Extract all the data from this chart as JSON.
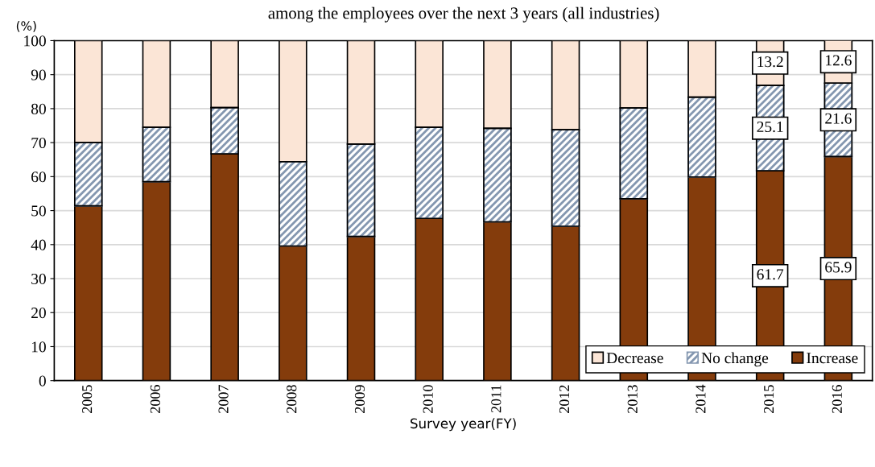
{
  "chart_data": {
    "type": "bar",
    "stacked": true,
    "title": "among the employees over the next 3 years (all industries)",
    "xlabel": "Survey year(FY)",
    "ylabel": "(%)",
    "categories": [
      "2005",
      "2006",
      "2007",
      "2008",
      "2009",
      "2010",
      "2011",
      "2012",
      "2013",
      "2014",
      "2015",
      "2016"
    ],
    "series": [
      {
        "name": "Increase",
        "color": "#843c0c",
        "values": [
          51.4,
          58.5,
          66.7,
          39.6,
          42.4,
          47.7,
          46.7,
          45.4,
          53.5,
          59.9,
          61.7,
          65.9
        ],
        "value_labels": [
          null,
          null,
          null,
          null,
          null,
          null,
          null,
          null,
          null,
          null,
          "61.7",
          "65.9"
        ]
      },
      {
        "name": "No change",
        "color": "#8497b0",
        "values": [
          18.6,
          16.0,
          13.6,
          24.8,
          27.2,
          26.8,
          27.5,
          28.4,
          26.7,
          23.5,
          25.1,
          21.6
        ],
        "value_labels": [
          null,
          null,
          null,
          null,
          null,
          null,
          null,
          null,
          null,
          null,
          "25.1",
          "21.6"
        ]
      },
      {
        "name": "Decrease",
        "color": "#fbe5d6",
        "values": [
          30.0,
          25.5,
          19.7,
          35.6,
          30.4,
          25.5,
          25.8,
          26.2,
          19.8,
          16.6,
          13.2,
          12.6
        ],
        "value_labels": [
          null,
          null,
          null,
          null,
          null,
          null,
          null,
          null,
          null,
          null,
          "13.2",
          "12.6"
        ]
      }
    ],
    "ylim": [
      0,
      100
    ],
    "yticks": [
      0,
      10,
      20,
      30,
      40,
      50,
      60,
      70,
      80,
      90,
      100
    ],
    "grid": "y",
    "legend": "bottom right"
  }
}
